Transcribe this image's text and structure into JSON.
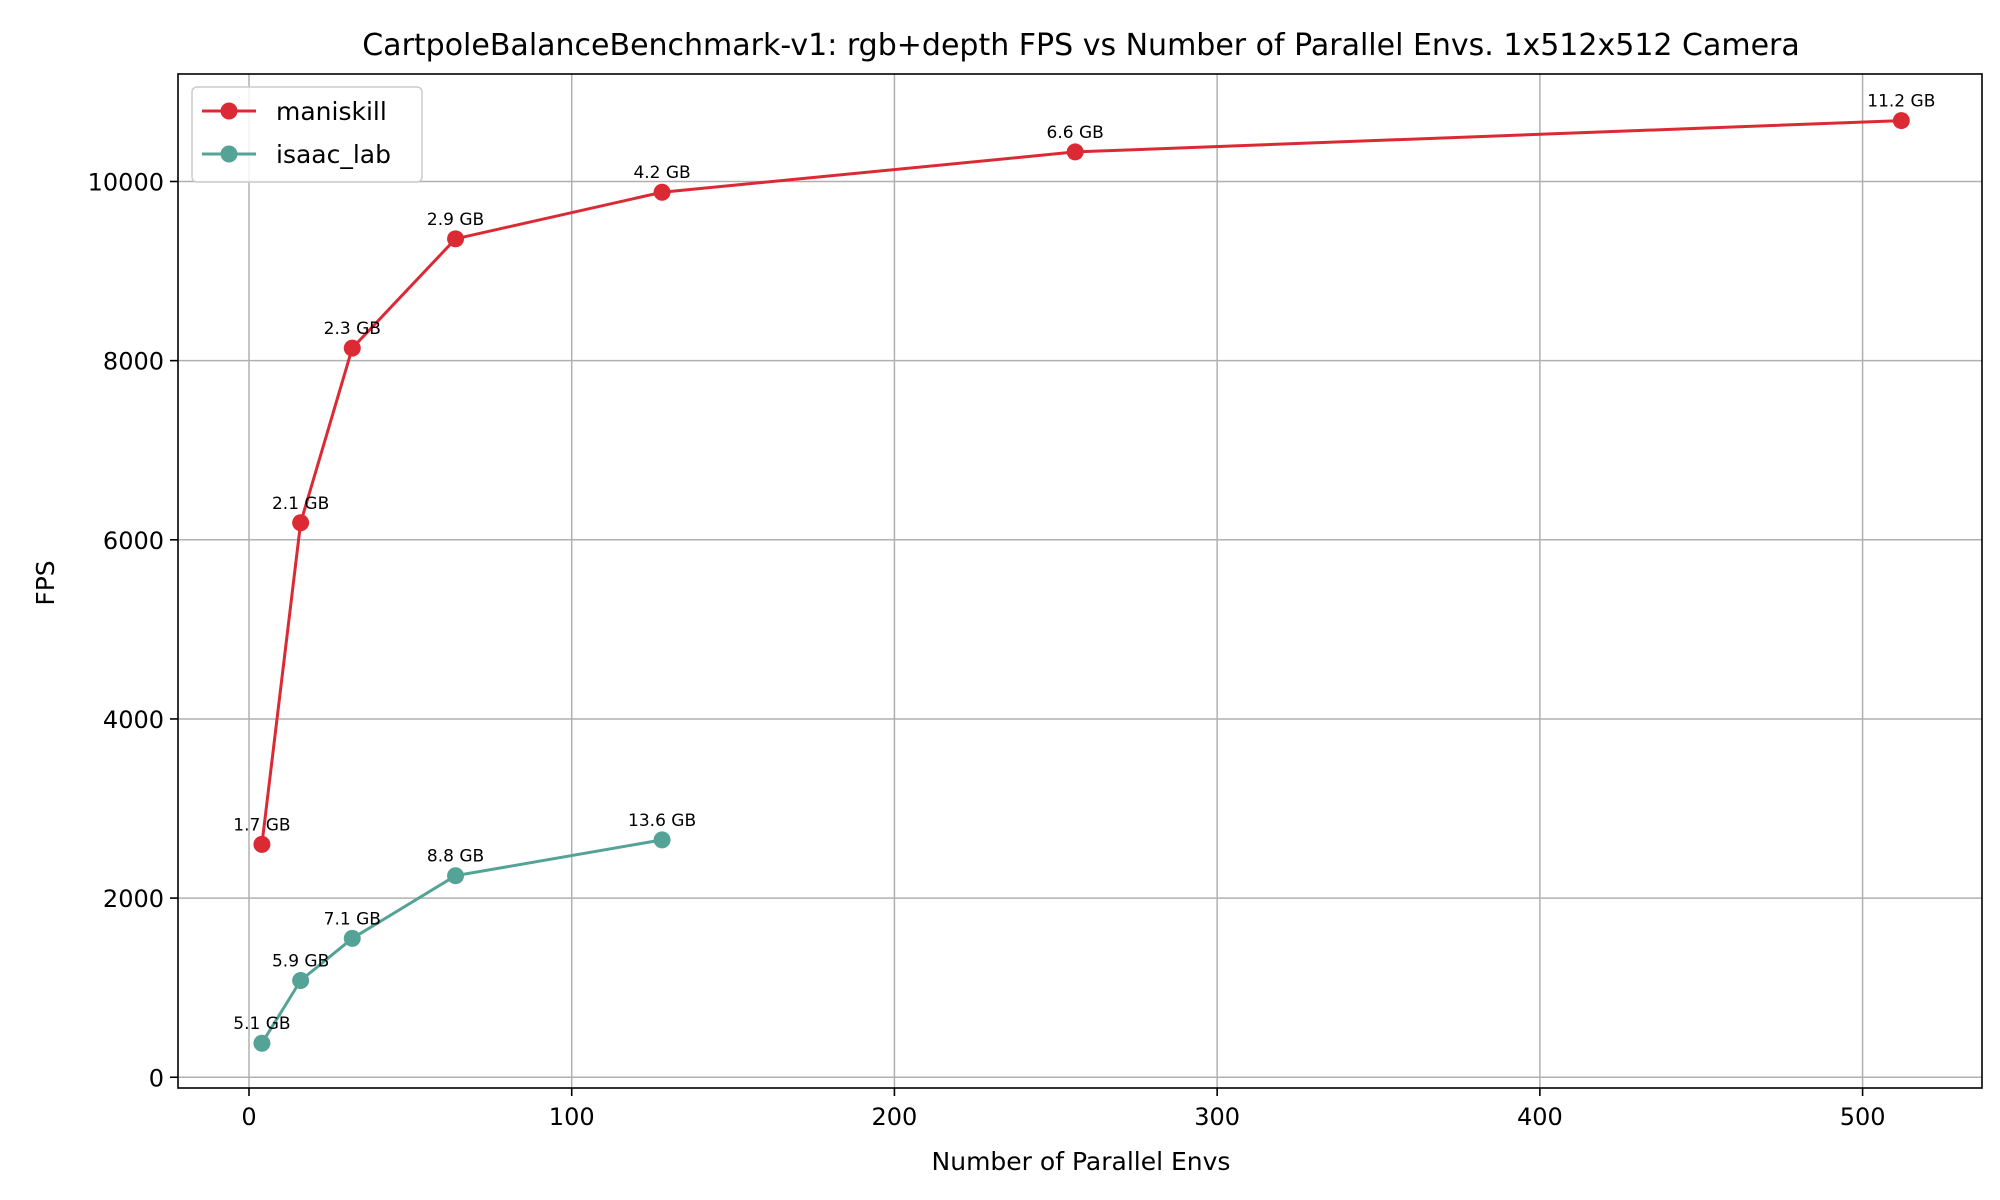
{
  "chart_data": {
    "type": "line",
    "title": "CartpoleBalanceBenchmark-v1: rgb+depth FPS vs Number of Parallel Envs. 1x512x512 Camera",
    "xlabel": "Number of Parallel Envs",
    "ylabel": "FPS",
    "xlim": [
      -22,
      537
    ],
    "ylim": [
      -120,
      11200
    ],
    "xticks": [
      0,
      100,
      200,
      300,
      400,
      500
    ],
    "yticks": [
      0,
      2000,
      4000,
      6000,
      8000,
      10000
    ],
    "grid": true,
    "legend_position": "top-left",
    "series": [
      {
        "name": "maniskill",
        "color": "#dc2a35",
        "x": [
          4,
          16,
          32,
          64,
          128,
          256,
          512
        ],
        "y": [
          2600,
          6190,
          8140,
          9360,
          9880,
          10330,
          10680
        ],
        "labels": [
          "1.7 GB",
          "2.1 GB",
          "2.3 GB",
          "2.9 GB",
          "4.2 GB",
          "6.6 GB",
          "11.2 GB"
        ]
      },
      {
        "name": "isaac_lab",
        "color": "#55a396",
        "x": [
          4,
          16,
          32,
          64,
          128
        ],
        "y": [
          380,
          1080,
          1550,
          2250,
          2650
        ],
        "labels": [
          "5.1 GB",
          "5.9 GB",
          "7.1 GB",
          "8.8 GB",
          "13.6 GB"
        ]
      }
    ]
  }
}
